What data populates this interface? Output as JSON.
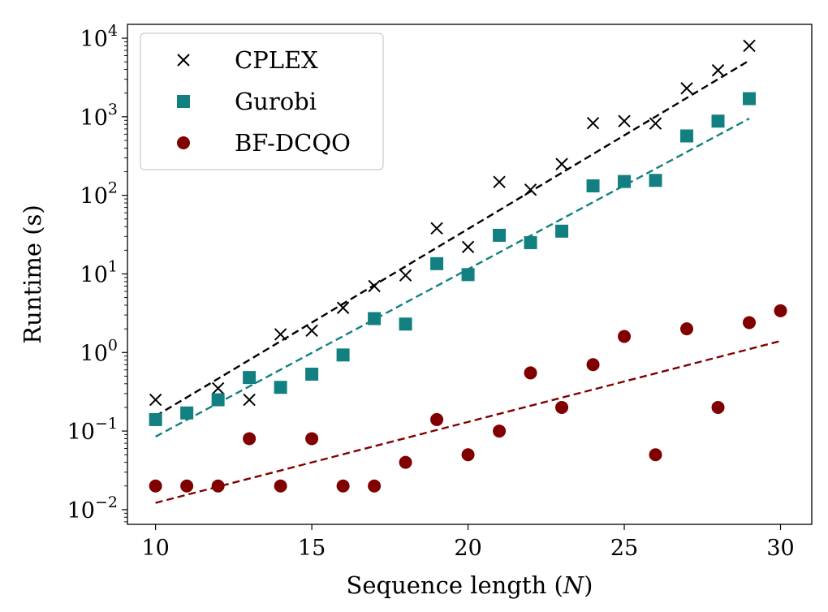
{
  "chart_data": {
    "type": "scatter",
    "xlabel": "Sequence length (N)",
    "ylabel": "Runtime (s)",
    "xscale": "linear",
    "yscale": "log",
    "xlim": [
      9.1,
      31.0
    ],
    "ylim": [
      0.0065,
      15000
    ],
    "xticks": [
      10,
      15,
      20,
      25,
      30
    ],
    "xtick_labels": [
      "10",
      "15",
      "20",
      "25",
      "30"
    ],
    "yticks": [
      0.01,
      0.1,
      1,
      10,
      100,
      1000,
      10000
    ],
    "ytick_bases": [
      "10",
      "10",
      "10",
      "10",
      "10",
      "10",
      "10"
    ],
    "ytick_exponents": [
      "−2",
      "−1",
      "0",
      "1",
      "2",
      "3",
      "4"
    ],
    "grid": false,
    "legend_position": "top-left",
    "series": [
      {
        "name": "CPLEX",
        "marker": "x",
        "color": "#000000",
        "x": [
          10,
          12,
          13,
          14,
          15,
          16,
          17,
          18,
          19,
          20,
          21,
          22,
          23,
          24,
          25,
          26,
          27,
          28,
          29
        ],
        "y": [
          0.25,
          0.35,
          0.25,
          1.7,
          1.9,
          3.7,
          7.0,
          9.6,
          38,
          22,
          148,
          118,
          250,
          830,
          880,
          820,
          2300,
          3900,
          8000
        ],
        "fit": {
          "x": [
            10,
            29
          ],
          "y": [
            0.155,
            5200
          ]
        }
      },
      {
        "name": "Gurobi",
        "marker": "square",
        "color": "#128080",
        "x": [
          10,
          11,
          12,
          13,
          14,
          15,
          16,
          17,
          18,
          19,
          20,
          21,
          22,
          23,
          24,
          25,
          26,
          27,
          28,
          29
        ],
        "y": [
          0.14,
          0.17,
          0.25,
          0.48,
          0.36,
          0.53,
          0.93,
          2.7,
          2.3,
          13.5,
          9.8,
          31,
          25,
          35,
          132,
          150,
          155,
          570,
          880,
          1700
        ],
        "fit": {
          "x": [
            10,
            29
          ],
          "y": [
            0.085,
            950
          ]
        }
      },
      {
        "name": "BF-DCQO",
        "marker": "circle",
        "color": "#800000",
        "x": [
          10,
          11,
          12,
          13,
          14,
          15,
          16,
          17,
          18,
          19,
          20,
          21,
          22,
          23,
          24,
          25,
          26,
          27,
          28,
          29,
          30
        ],
        "y": [
          0.02,
          0.02,
          0.02,
          0.08,
          0.02,
          0.08,
          0.02,
          0.02,
          0.04,
          0.14,
          0.05,
          0.1,
          0.55,
          0.2,
          0.7,
          1.6,
          0.05,
          2.0,
          0.2,
          2.4,
          3.4
        ],
        "fit": {
          "x": [
            10,
            30
          ],
          "y": [
            0.0122,
            1.4
          ]
        }
      }
    ]
  }
}
